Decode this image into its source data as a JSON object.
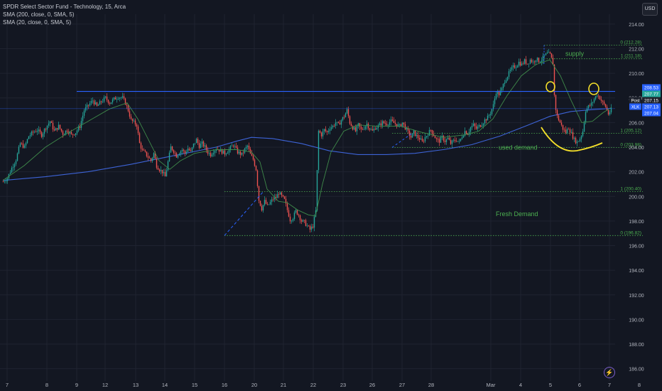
{
  "header": {
    "title": "SPDR Select Sector Fund - Technology, 15, Arca",
    "indicators": [
      "SMA (200, close, 0, SMA, 5)",
      "SMA (20, close, 0, SMA, 5)"
    ],
    "currency_button": "USD"
  },
  "colors": {
    "background": "#131722",
    "grid": "#1f2330",
    "up": "#26a69a",
    "down": "#ef5350",
    "sma200": "#3d63d6",
    "sma20": "#3f8a4a",
    "resistance": "#2962ff",
    "fib": "#4caf50",
    "annotation": "#f5e02a",
    "axis_text": "#b2b5be"
  },
  "icons": {
    "bolt": "lightning-icon"
  },
  "chart_data": {
    "type": "candlestick",
    "instrument": "XLK",
    "timeframe": "15",
    "ylim": [
      185.0,
      214.8
    ],
    "y_ticks": [
      "214.00",
      "212.00",
      "210.00",
      "208.00",
      "206.00",
      "204.00",
      "202.00",
      "200.00",
      "198.00",
      "196.00",
      "194.00",
      "192.00",
      "190.00",
      "188.00",
      "186.00"
    ],
    "x_ticks": [
      "7",
      "8",
      "9",
      "12",
      "13",
      "14",
      "15",
      "16",
      "20",
      "21",
      "22",
      "23",
      "26",
      "27",
      "28",
      "Mar",
      "4",
      "5",
      "6",
      "7",
      "8"
    ],
    "price_tags": [
      {
        "value": 208.53,
        "label": "208.53",
        "color": "#2962ff"
      },
      {
        "value": 207.77,
        "label": "207.77",
        "color": "#26a69a"
      },
      {
        "value": 207.15,
        "label": "207.15",
        "color": "#1e222d",
        "tag": "Post"
      },
      {
        "value": 207.13,
        "label": "207.13",
        "color": "#2962ff",
        "tag": "XLK"
      },
      {
        "value": 207.04,
        "label": "207.04",
        "color": "#2962ff"
      }
    ],
    "resistance_level": 208.53,
    "horizontal_last": 207.13,
    "fib_supply": {
      "levels": [
        {
          "label": "0 (212.28)",
          "value": 212.28
        },
        {
          "label": "1 (211.18)",
          "value": 211.18
        }
      ],
      "zone_label": "supply"
    },
    "fib_used_demand": {
      "levels": [
        {
          "label": "1 (205.12)",
          "value": 205.12
        },
        {
          "label": "0 (203.98)",
          "value": 203.98
        }
      ],
      "zone_label": "used demand"
    },
    "fib_fresh_demand": {
      "levels": [
        {
          "label": "1 (200.40)",
          "value": 200.4
        },
        {
          "label": "0 (196.82)",
          "value": 196.82
        }
      ],
      "zone_label": "Fresh Demand"
    },
    "close_path": [
      [
        0,
        201.2
      ],
      [
        6,
        201.5
      ],
      [
        12,
        202.3
      ],
      [
        18,
        203.0
      ],
      [
        24,
        204.3
      ],
      [
        30,
        204.0
      ],
      [
        36,
        204.9
      ],
      [
        42,
        205.2
      ],
      [
        48,
        205.4
      ],
      [
        54,
        205.0
      ],
      [
        60,
        205.6
      ],
      [
        66,
        206.1
      ],
      [
        72,
        205.3
      ],
      [
        78,
        205.7
      ],
      [
        84,
        205.1
      ],
      [
        90,
        205.4
      ],
      [
        96,
        205.0
      ],
      [
        102,
        205.2
      ],
      [
        108,
        205.7
      ],
      [
        114,
        207.0
      ],
      [
        120,
        207.4
      ],
      [
        126,
        207.8
      ],
      [
        132,
        207.3
      ],
      [
        138,
        207.7
      ],
      [
        144,
        208.0
      ],
      [
        150,
        207.6
      ],
      [
        156,
        207.9
      ],
      [
        162,
        208.1
      ],
      [
        168,
        208.0
      ],
      [
        172,
        207.6
      ],
      [
        176,
        207.0
      ],
      [
        180,
        206.2
      ],
      [
        184,
        206.0
      ],
      [
        188,
        205.8
      ],
      [
        192,
        204.3
      ],
      [
        196,
        203.7
      ],
      [
        200,
        203.5
      ],
      [
        204,
        203.2
      ],
      [
        208,
        202.9
      ],
      [
        212,
        203.5
      ],
      [
        216,
        202.5
      ],
      [
        220,
        202.2
      ],
      [
        224,
        202.0
      ],
      [
        228,
        201.6
      ],
      [
        232,
        202.8
      ],
      [
        236,
        204.0
      ],
      [
        240,
        203.7
      ],
      [
        244,
        203.3
      ],
      [
        248,
        203.6
      ],
      [
        252,
        203.8
      ],
      [
        256,
        203.5
      ],
      [
        260,
        203.9
      ],
      [
        264,
        203.6
      ],
      [
        268,
        204.2
      ],
      [
        272,
        204.6
      ],
      [
        276,
        204.1
      ],
      [
        280,
        204.3
      ],
      [
        284,
        204.0
      ],
      [
        288,
        203.6
      ],
      [
        292,
        203.4
      ],
      [
        296,
        203.7
      ],
      [
        300,
        203.9
      ],
      [
        306,
        203.7
      ],
      [
        312,
        203.5
      ],
      [
        318,
        203.8
      ],
      [
        324,
        204.2
      ],
      [
        330,
        203.6
      ],
      [
        336,
        203.4
      ],
      [
        340,
        203.8
      ],
      [
        344,
        204.1
      ],
      [
        348,
        203.4
      ],
      [
        352,
        203.0
      ],
      [
        356,
        202.2
      ],
      [
        360,
        199.7
      ],
      [
        364,
        199.0
      ],
      [
        368,
        199.6
      ],
      [
        372,
        199.2
      ],
      [
        376,
        199.5
      ],
      [
        380,
        199.8
      ],
      [
        384,
        199.9
      ],
      [
        388,
        200.3
      ],
      [
        392,
        200.0
      ],
      [
        396,
        199.7
      ],
      [
        400,
        198.9
      ],
      [
        404,
        198.1
      ],
      [
        408,
        198.3
      ],
      [
        412,
        198.8
      ],
      [
        416,
        198.5
      ],
      [
        420,
        198.0
      ],
      [
        424,
        197.9
      ],
      [
        428,
        197.6
      ],
      [
        432,
        197.3
      ],
      [
        436,
        197.6
      ],
      [
        440,
        198.8
      ],
      [
        444,
        205.3
      ],
      [
        448,
        205.0
      ],
      [
        452,
        205.4
      ],
      [
        456,
        205.2
      ],
      [
        460,
        205.6
      ],
      [
        464,
        205.7
      ],
      [
        468,
        206.0
      ],
      [
        472,
        205.8
      ],
      [
        476,
        206.2
      ],
      [
        480,
        206.5
      ],
      [
        484,
        207.0
      ],
      [
        488,
        206.0
      ],
      [
        492,
        205.6
      ],
      [
        496,
        205.3
      ],
      [
        500,
        205.8
      ],
      [
        504,
        205.4
      ],
      [
        508,
        205.6
      ],
      [
        512,
        205.9
      ],
      [
        516,
        205.5
      ],
      [
        520,
        205.3
      ],
      [
        524,
        205.6
      ],
      [
        528,
        205.7
      ],
      [
        534,
        206.0
      ],
      [
        540,
        205.9
      ],
      [
        546,
        206.1
      ],
      [
        552,
        205.9
      ],
      [
        558,
        205.7
      ],
      [
        562,
        206.0
      ],
      [
        566,
        205.6
      ],
      [
        570,
        205.2
      ],
      [
        574,
        204.8
      ],
      [
        578,
        205.2
      ],
      [
        582,
        204.9
      ],
      [
        586,
        204.7
      ],
      [
        590,
        204.4
      ],
      [
        594,
        204.8
      ],
      [
        598,
        205.1
      ],
      [
        602,
        205.4
      ],
      [
        606,
        205.0
      ],
      [
        610,
        204.6
      ],
      [
        614,
        204.5
      ],
      [
        618,
        204.8
      ],
      [
        622,
        204.5
      ],
      [
        626,
        204.7
      ],
      [
        630,
        204.3
      ],
      [
        634,
        204.5
      ],
      [
        638,
        204.6
      ],
      [
        642,
        204.4
      ],
      [
        646,
        204.9
      ],
      [
        650,
        205.3
      ],
      [
        654,
        205.1
      ],
      [
        658,
        205.6
      ],
      [
        662,
        205.8
      ],
      [
        666,
        205.5
      ],
      [
        670,
        205.7
      ],
      [
        674,
        205.9
      ],
      [
        678,
        206.2
      ],
      [
        682,
        206.4
      ],
      [
        686,
        206.8
      ],
      [
        690,
        207.4
      ],
      [
        694,
        208.5
      ],
      [
        698,
        208.3
      ],
      [
        702,
        208.7
      ],
      [
        706,
        209.4
      ],
      [
        710,
        209.8
      ],
      [
        714,
        210.2
      ],
      [
        718,
        210.5
      ],
      [
        722,
        210.6
      ],
      [
        726,
        210.9
      ],
      [
        730,
        210.7
      ],
      [
        734,
        211.0
      ],
      [
        738,
        210.8
      ],
      [
        742,
        211.1
      ],
      [
        746,
        210.9
      ],
      [
        750,
        211.2
      ],
      [
        754,
        211.0
      ],
      [
        758,
        211.1
      ],
      [
        762,
        211.4
      ],
      [
        766,
        211.6
      ],
      [
        770,
        211.5
      ],
      [
        774,
        210.8
      ],
      [
        776,
        208.2
      ],
      [
        778,
        207.1
      ],
      [
        780,
        206.5
      ],
      [
        784,
        206.0
      ],
      [
        788,
        205.5
      ],
      [
        792,
        205.2
      ],
      [
        796,
        205.6
      ],
      [
        800,
        205.1
      ],
      [
        804,
        204.6
      ],
      [
        808,
        204.4
      ],
      [
        812,
        204.7
      ],
      [
        816,
        205.3
      ],
      [
        820,
        207.0
      ],
      [
        824,
        207.3
      ],
      [
        828,
        207.5
      ],
      [
        832,
        207.9
      ],
      [
        836,
        208.3
      ],
      [
        840,
        208.0
      ],
      [
        844,
        207.6
      ],
      [
        848,
        207.3
      ],
      [
        852,
        206.7
      ],
      [
        856,
        207.04
      ]
    ],
    "sma200_path": [
      [
        0,
        201.3
      ],
      [
        60,
        201.6
      ],
      [
        120,
        202.0
      ],
      [
        180,
        202.6
      ],
      [
        240,
        203.3
      ],
      [
        300,
        204.0
      ],
      [
        330,
        204.5
      ],
      [
        350,
        204.8
      ],
      [
        380,
        204.7
      ],
      [
        420,
        204.3
      ],
      [
        460,
        203.7
      ],
      [
        500,
        203.4
      ],
      [
        540,
        203.4
      ],
      [
        580,
        203.5
      ],
      [
        620,
        203.8
      ],
      [
        660,
        204.2
      ],
      [
        700,
        204.9
      ],
      [
        740,
        205.8
      ],
      [
        770,
        206.5
      ],
      [
        800,
        206.9
      ],
      [
        830,
        207.05
      ],
      [
        856,
        207.15
      ]
    ],
    "sma20_path": [
      [
        0,
        201.3
      ],
      [
        30,
        202.5
      ],
      [
        60,
        204.0
      ],
      [
        90,
        205.1
      ],
      [
        120,
        206.1
      ],
      [
        150,
        207.1
      ],
      [
        175,
        207.6
      ],
      [
        190,
        206.3
      ],
      [
        205,
        204.6
      ],
      [
        220,
        202.9
      ],
      [
        235,
        202.2
      ],
      [
        250,
        202.9
      ],
      [
        270,
        203.5
      ],
      [
        300,
        203.8
      ],
      [
        330,
        203.8
      ],
      [
        350,
        203.6
      ],
      [
        362,
        202.8
      ],
      [
        372,
        200.6
      ],
      [
        388,
        199.6
      ],
      [
        400,
        199.5
      ],
      [
        415,
        198.9
      ],
      [
        430,
        198.5
      ],
      [
        440,
        198.4
      ],
      [
        450,
        201.0
      ],
      [
        462,
        203.6
      ],
      [
        480,
        205.3
      ],
      [
        500,
        205.8
      ],
      [
        530,
        205.7
      ],
      [
        560,
        205.7
      ],
      [
        590,
        205.2
      ],
      [
        620,
        204.8
      ],
      [
        650,
        205.0
      ],
      [
        670,
        205.3
      ],
      [
        690,
        206.3
      ],
      [
        710,
        208.2
      ],
      [
        730,
        209.8
      ],
      [
        750,
        210.7
      ],
      [
        770,
        211.1
      ],
      [
        785,
        209.8
      ],
      [
        800,
        207.8
      ],
      [
        815,
        206.0
      ],
      [
        830,
        206.1
      ],
      [
        845,
        206.8
      ],
      [
        856,
        207.2
      ]
    ]
  }
}
